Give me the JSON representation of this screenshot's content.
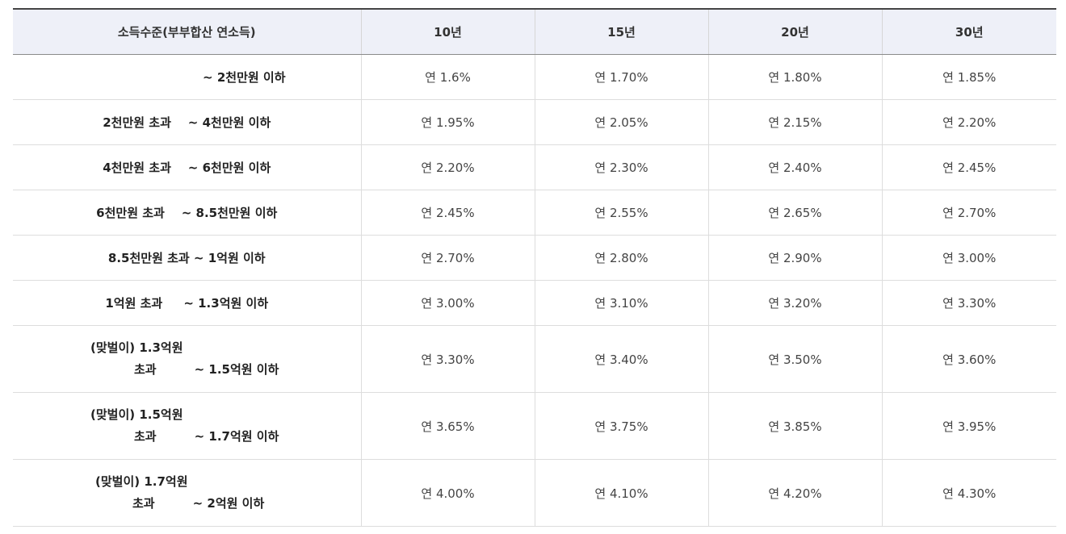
{
  "table": {
    "headers": [
      "소득수준(부부합산 연소득)",
      "10년",
      "15년",
      "20년",
      "30년"
    ],
    "rows": [
      {
        "income_line1": "~ 2천만원 이하",
        "income_line2": "",
        "rates": [
          "연 1.6%",
          "연 1.70%",
          "연 1.80%",
          "연 1.85%"
        ]
      },
      {
        "income_line1": "2천만원 초과    ~ 4천만원 이하",
        "income_line2": "",
        "rates": [
          "연 1.95%",
          "연 2.05%",
          "연 2.15%",
          "연 2.20%"
        ]
      },
      {
        "income_line1": "4천만원 초과    ~ 6천만원 이하",
        "income_line2": "",
        "rates": [
          "연 2.20%",
          "연 2.30%",
          "연 2.40%",
          "연 2.45%"
        ]
      },
      {
        "income_line1": "6천만원 초과    ~ 8.5천만원 이하",
        "income_line2": "",
        "rates": [
          "연 2.45%",
          "연 2.55%",
          "연 2.65%",
          "연 2.70%"
        ]
      },
      {
        "income_line1": "8.5천만원 초과 ~ 1억원 이하",
        "income_line2": "",
        "rates": [
          "연 2.70%",
          "연 2.80%",
          "연 2.90%",
          "연 3.00%"
        ]
      },
      {
        "income_line1": "1억원 초과     ~ 1.3억원 이하",
        "income_line2": "",
        "rates": [
          "연 3.00%",
          "연 3.10%",
          "연 3.20%",
          "연 3.30%"
        ]
      },
      {
        "income_line1": "(맞벌이) 1.3억원",
        "income_line2": "초과         ~ 1.5억원 이하",
        "rates": [
          "연 3.30%",
          "연 3.40%",
          "연 3.50%",
          "연 3.60%"
        ]
      },
      {
        "income_line1": "(맞벌이) 1.5억원",
        "income_line2": "초과         ~ 1.7억원 이하",
        "rates": [
          "연 3.65%",
          "연 3.75%",
          "연 3.85%",
          "연 3.95%"
        ]
      },
      {
        "income_line1": "(맞벌이) 1.7억원",
        "income_line2": "초과         ~ 2억원 이하",
        "rates": [
          "연 4.00%",
          "연 4.10%",
          "연 4.20%",
          "연 4.30%"
        ]
      }
    ]
  }
}
